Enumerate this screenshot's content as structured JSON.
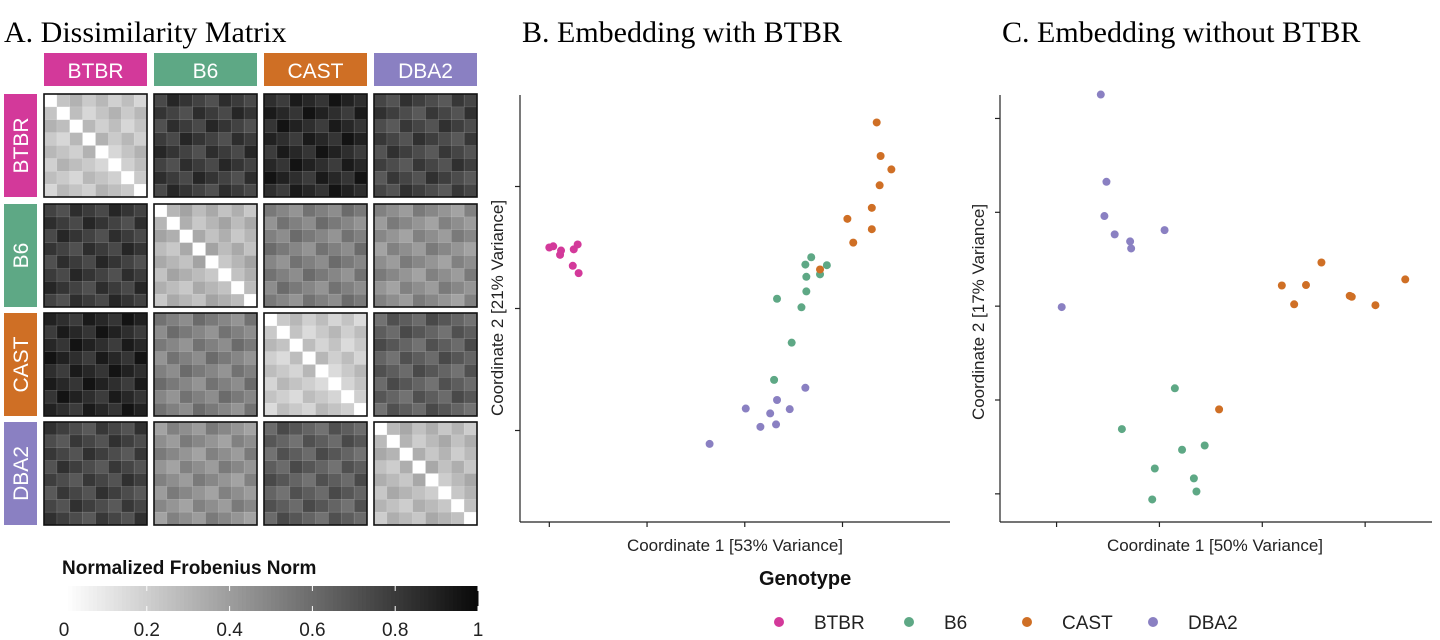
{
  "colors": {
    "BTBR": "#d3399a",
    "B6": "#5ea885",
    "CAST": "#cf6f25",
    "DBA2": "#8a80c2"
  },
  "chart_data": [
    {
      "type": "heatmap",
      "title": "A. Dissimilarity Matrix",
      "row_labels": [
        "BTBR",
        "B6",
        "CAST",
        "DBA2"
      ],
      "col_labels": [
        "BTBR",
        "B6",
        "CAST",
        "DBA2"
      ],
      "block_values": [
        [
          0.24,
          0.8,
          0.88,
          0.76
        ],
        [
          0.8,
          0.3,
          0.52,
          0.46
        ],
        [
          0.88,
          0.52,
          0.22,
          0.66
        ],
        [
          0.76,
          0.46,
          0.66,
          0.28
        ]
      ],
      "colorbar": {
        "title": "Normalized Frobenius Norm",
        "ticks": [
          "0",
          "0.2",
          "0.4",
          "0.6",
          "0.8",
          "1"
        ],
        "range": [
          0,
          1
        ]
      }
    },
    {
      "type": "scatter",
      "title": "B. Embedding with BTBR",
      "xlabel": "Coordinate 1 [53% Variance]",
      "ylabel": "Coordinate 2 [21% Variance]",
      "xlim": [
        -0.03,
        0.41
      ],
      "ylim": [
        -0.35,
        0.35
      ],
      "series": [
        {
          "name": "BTBR",
          "points": [
            [
              0.0,
              0.1
            ],
            [
              0.004,
              0.102
            ],
            [
              0.012,
              0.095
            ],
            [
              0.011,
              0.088
            ],
            [
              0.025,
              0.097
            ],
            [
              0.029,
              0.105
            ],
            [
              0.024,
              0.07
            ],
            [
              0.03,
              0.058
            ]
          ]
        },
        {
          "name": "B6",
          "points": [
            [
              0.263,
              0.052
            ],
            [
              0.262,
              0.072
            ],
            [
              0.268,
              0.084
            ],
            [
              0.277,
              0.056
            ],
            [
              0.284,
              0.071
            ],
            [
              0.263,
              0.028
            ],
            [
              0.258,
              0.002
            ],
            [
              0.233,
              0.016
            ],
            [
              0.248,
              -0.056
            ],
            [
              0.23,
              -0.117
            ]
          ]
        },
        {
          "name": "CAST",
          "points": [
            [
              0.277,
              0.064
            ],
            [
              0.305,
              0.147
            ],
            [
              0.311,
              0.108
            ],
            [
              0.33,
              0.13
            ],
            [
              0.33,
              0.165
            ],
            [
              0.338,
              0.202
            ],
            [
              0.339,
              0.25
            ],
            [
              0.35,
              0.228
            ],
            [
              0.335,
              0.305
            ]
          ]
        },
        {
          "name": "DBA2",
          "points": [
            [
              0.262,
              -0.13
            ],
            [
              0.246,
              -0.165
            ],
            [
              0.233,
              -0.15
            ],
            [
              0.226,
              -0.172
            ],
            [
              0.232,
              -0.19
            ],
            [
              0.201,
              -0.164
            ],
            [
              0.216,
              -0.194
            ],
            [
              0.164,
              -0.222
            ]
          ]
        }
      ]
    },
    {
      "type": "scatter",
      "title": "C. Embedding without BTBR",
      "xlabel": "Coordinate 1 [50% Variance]",
      "ylabel": "Coordinate 2 [17% Variance]",
      "xlim": [
        -0.31,
        0.53
      ],
      "ylim": [
        -0.46,
        0.45
      ],
      "series": [
        {
          "name": "B6",
          "points": [
            [
              0.03,
              -0.175
            ],
            [
              -0.073,
              -0.262
            ],
            [
              -0.009,
              -0.346
            ],
            [
              0.044,
              -0.306
            ],
            [
              -0.014,
              -0.412
            ],
            [
              0.067,
              -0.367
            ],
            [
              0.072,
              -0.395
            ],
            [
              0.088,
              -0.297
            ]
          ]
        },
        {
          "name": "CAST",
          "points": [
            [
              0.42,
              0.002
            ],
            [
              0.262,
              0.004
            ],
            [
              0.238,
              0.044
            ],
            [
              0.285,
              0.045
            ],
            [
              0.37,
              0.022
            ],
            [
              0.374,
              0.02
            ],
            [
              0.315,
              0.093
            ],
            [
              0.478,
              0.057
            ],
            [
              0.116,
              -0.22
            ]
          ]
        },
        {
          "name": "DBA2",
          "points": [
            [
              -0.114,
              0.451
            ],
            [
              -0.103,
              0.265
            ],
            [
              -0.107,
              0.192
            ],
            [
              -0.087,
              0.153
            ],
            [
              -0.057,
              0.138
            ],
            [
              -0.055,
              0.123
            ],
            [
              0.01,
              0.162
            ],
            [
              -0.19,
              -0.002
            ]
          ]
        }
      ]
    }
  ],
  "legend": {
    "title": "Genotype",
    "items": [
      "BTBR",
      "B6",
      "CAST",
      "DBA2"
    ]
  }
}
